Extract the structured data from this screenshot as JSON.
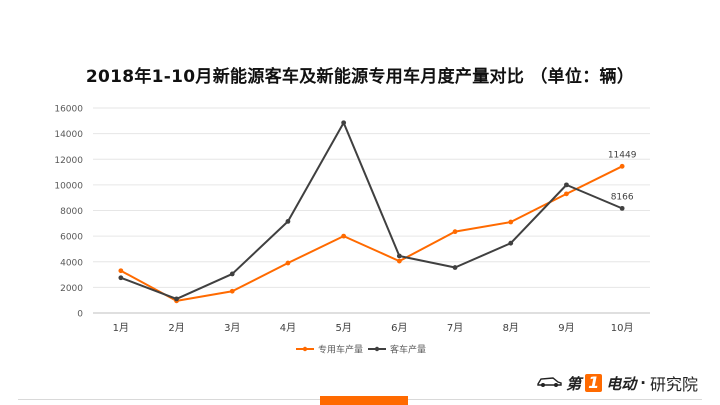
{
  "chart_data": {
    "type": "line",
    "title": "2018年1-10月新能源客车及新能源专用车月度产量对比 （单位：辆）",
    "categories": [
      "1月",
      "2月",
      "3月",
      "4月",
      "5月",
      "6月",
      "7月",
      "8月",
      "9月",
      "10月"
    ],
    "series": [
      {
        "name": "专用车产量",
        "color": "#ff6a00",
        "values": [
          3300,
          950,
          1700,
          3900,
          6000,
          4050,
          6350,
          7100,
          9300,
          11449
        ]
      },
      {
        "name": "客车产量",
        "color": "#404040",
        "values": [
          2750,
          1100,
          3050,
          7150,
          14850,
          4450,
          3550,
          5450,
          10000,
          8166
        ]
      }
    ],
    "ylim": [
      0,
      16000
    ],
    "yticks": [
      0,
      2000,
      4000,
      6000,
      8000,
      10000,
      12000,
      14000,
      16000
    ],
    "annotations": [
      {
        "series": 0,
        "index": 9,
        "label": "11449"
      },
      {
        "series": 1,
        "index": 9,
        "label": "8166"
      }
    ],
    "xlabel": "",
    "ylabel": "",
    "grid": true,
    "legend": "bottom"
  },
  "footer": {
    "brand_prefix": "第",
    "brand_number": "1",
    "brand_suffix": "电动",
    "separator": "·",
    "brand_unit": "研究院",
    "accent_color": "#ff6a00"
  }
}
